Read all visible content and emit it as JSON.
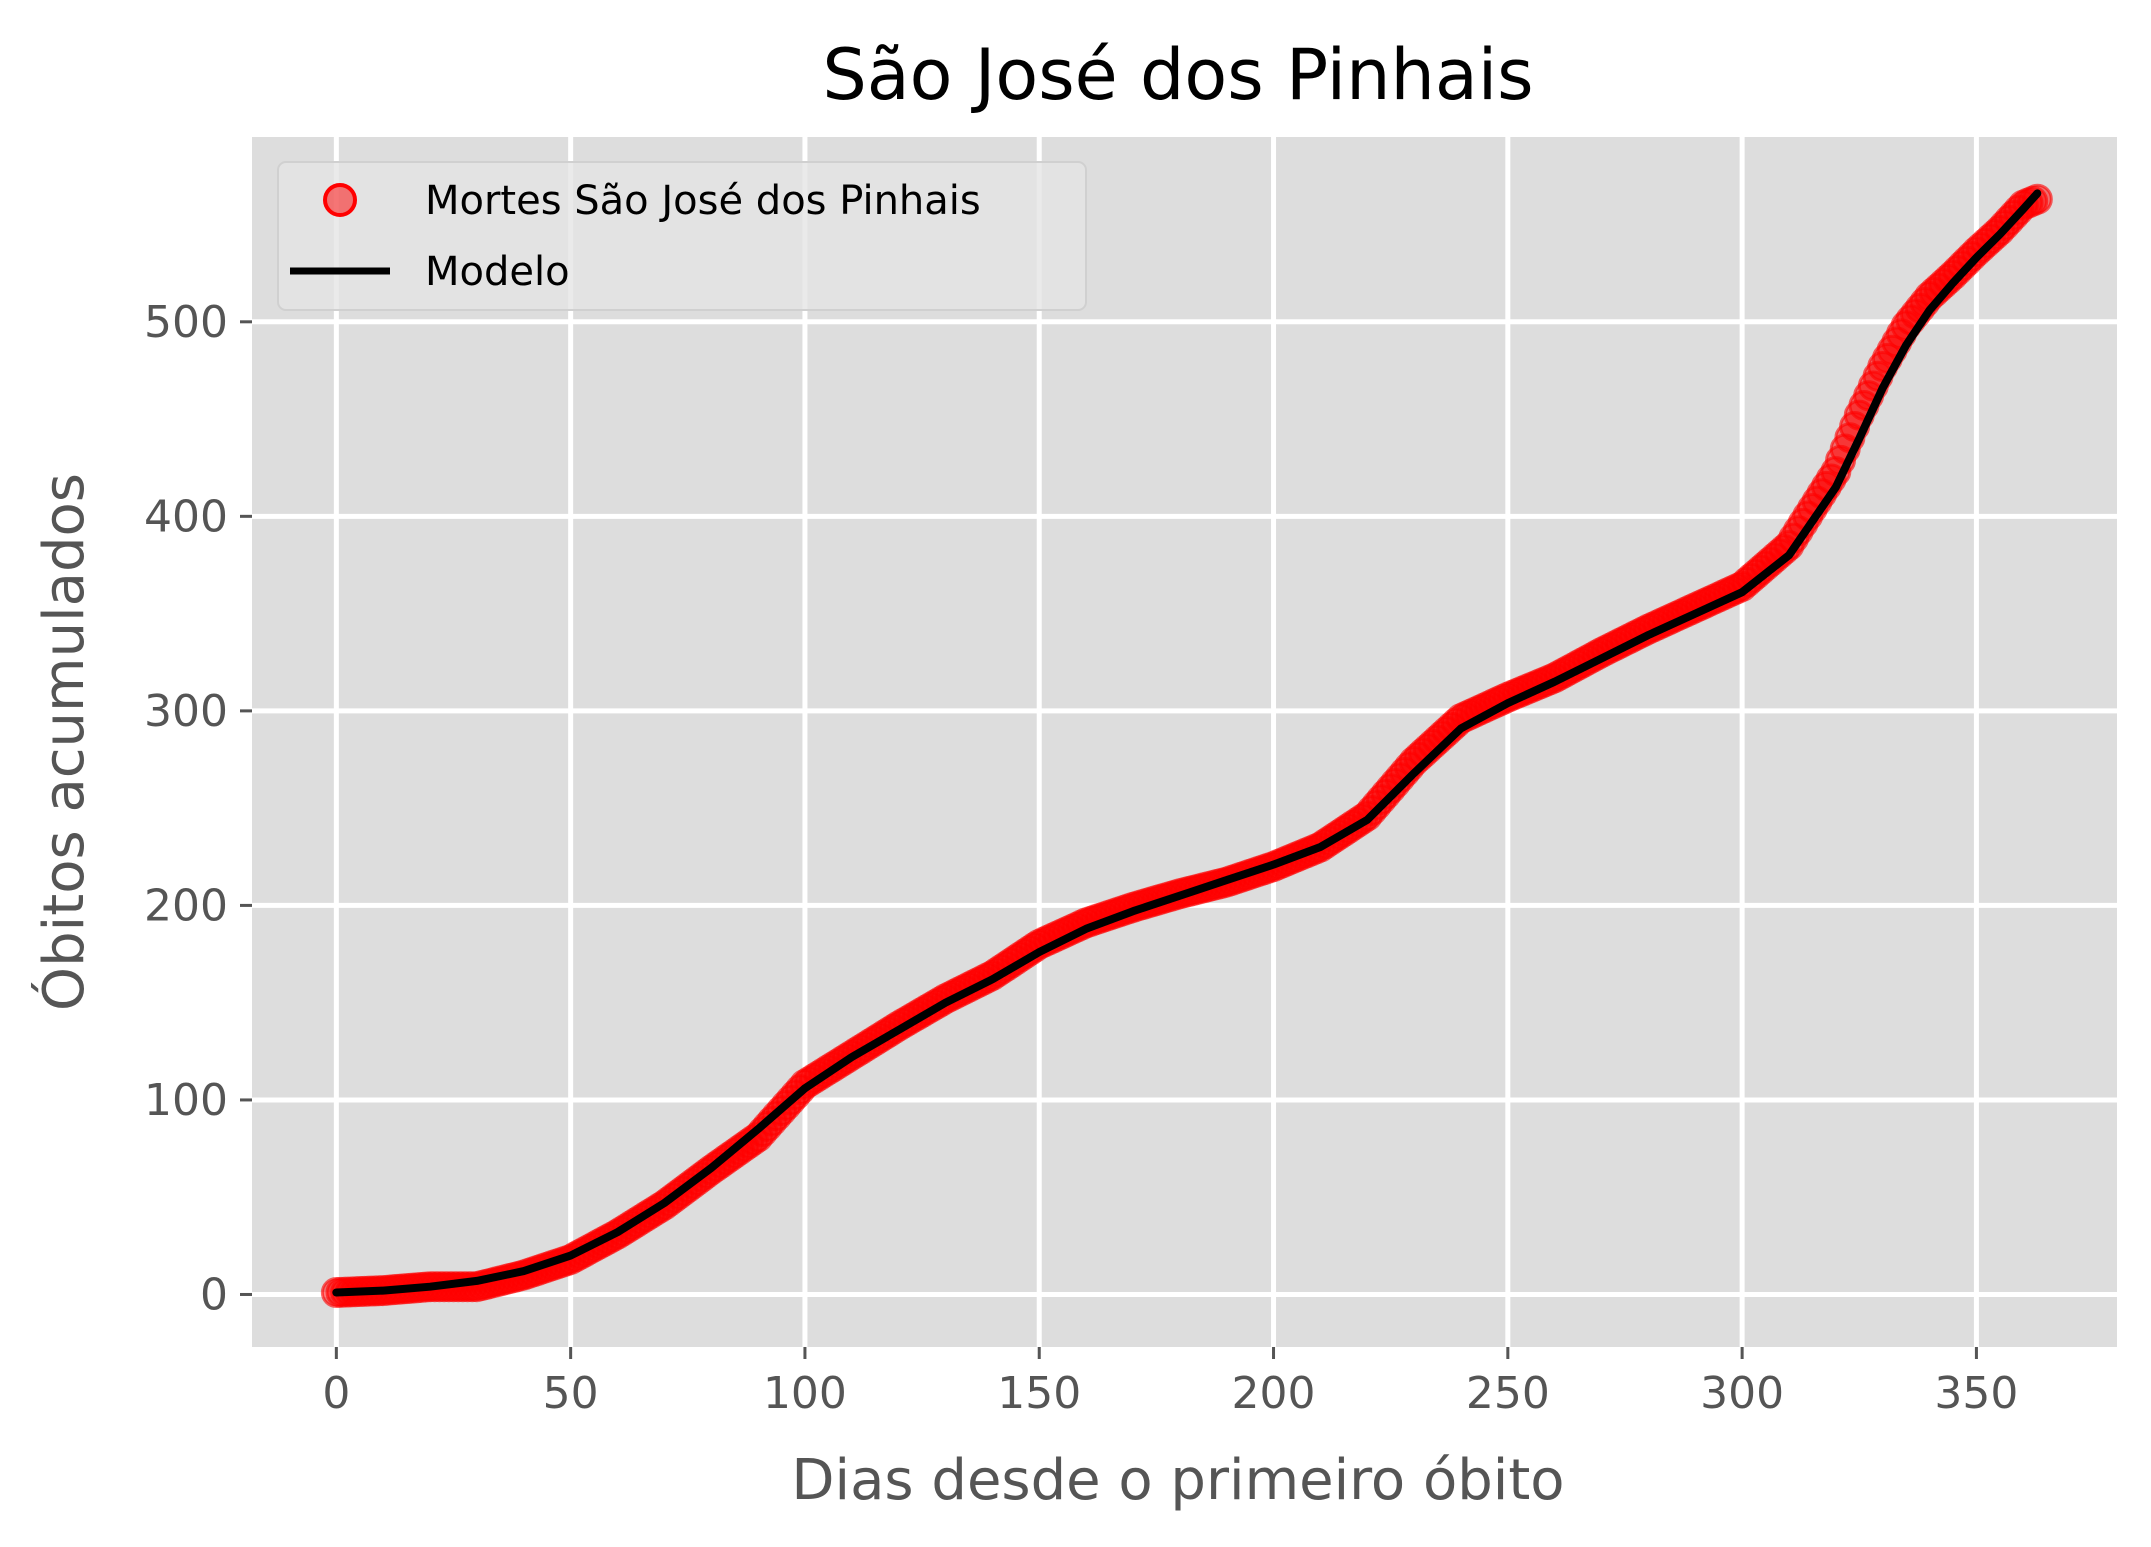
{
  "chart_data": {
    "type": "scatter",
    "title": "São José dos Pinhais",
    "xlabel": "Dias desde o primeiro óbito",
    "ylabel": "Óbitos acumulados",
    "xlim": [
      -18,
      380
    ],
    "ylim": [
      -27,
      595
    ],
    "xticks": [
      0,
      50,
      100,
      150,
      200,
      250,
      300,
      350
    ],
    "yticks": [
      0,
      100,
      200,
      300,
      400,
      500
    ],
    "grid": true,
    "legend_position": "top-left",
    "colors": {
      "points": "#ff0000",
      "model": "#000000",
      "background": "#dddddd",
      "grid": "#ffffff"
    },
    "series": [
      {
        "name": "Mortes São José dos Pinhais",
        "kind": "points",
        "x": [
          0,
          10,
          20,
          30,
          40,
          50,
          60,
          70,
          80,
          90,
          100,
          110,
          120,
          130,
          140,
          150,
          160,
          170,
          180,
          190,
          200,
          210,
          220,
          230,
          240,
          250,
          260,
          270,
          280,
          290,
          300,
          310,
          320,
          325,
          330,
          335,
          340,
          345,
          350,
          355,
          360,
          363
        ],
        "y": [
          1,
          2,
          4,
          4,
          10,
          18,
          31,
          46,
          64,
          81,
          108,
          123,
          138,
          152,
          164,
          180,
          191,
          199,
          206,
          212,
          220,
          230,
          246,
          274,
          296,
          307,
          317,
          330,
          342,
          353,
          364,
          385,
          423,
          452,
          477,
          498,
          513,
          524,
          536,
          547,
          560,
          563
        ]
      },
      {
        "name": "Modelo",
        "kind": "line",
        "x": [
          0,
          10,
          20,
          30,
          40,
          50,
          60,
          70,
          80,
          90,
          100,
          110,
          120,
          130,
          140,
          150,
          160,
          170,
          180,
          190,
          200,
          210,
          220,
          230,
          240,
          250,
          260,
          270,
          280,
          290,
          300,
          310,
          320,
          325,
          330,
          335,
          340,
          345,
          350,
          355,
          360,
          363
        ],
        "y": [
          1,
          2,
          4,
          7,
          12,
          20,
          32,
          47,
          65,
          85,
          106,
          122,
          136,
          150,
          162,
          176,
          188,
          197,
          205,
          213,
          221,
          230,
          244,
          268,
          291,
          304,
          315,
          327,
          339,
          350,
          361,
          380,
          415,
          440,
          466,
          488,
          506,
          520,
          533,
          545,
          558,
          566
        ]
      }
    ]
  }
}
